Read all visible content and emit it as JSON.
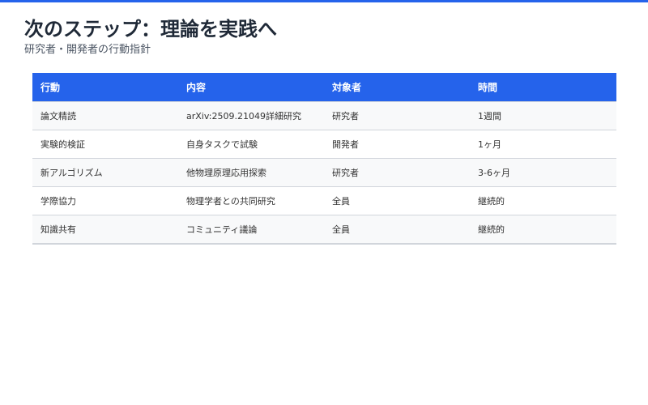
{
  "header": {
    "title": "次のステップ：理論を実践へ",
    "subtitle": "研究者・開発者の行動指針"
  },
  "colors": {
    "accent": "#2563eb"
  },
  "table": {
    "columns": [
      "行動",
      "内容",
      "対象者",
      "時間"
    ],
    "rows": [
      [
        "論文精読",
        "arXiv:2509.21049詳細研究",
        "研究者",
        "1週間"
      ],
      [
        "実験的検証",
        "自身タスクで試験",
        "開発者",
        "1ヶ月"
      ],
      [
        "新アルゴリズム",
        "他物理原理応用探索",
        "研究者",
        "3-6ヶ月"
      ],
      [
        "学際協力",
        "物理学者との共同研究",
        "全員",
        "継続的"
      ],
      [
        "知識共有",
        "コミュニティ議論",
        "全員",
        "継続的"
      ]
    ]
  }
}
